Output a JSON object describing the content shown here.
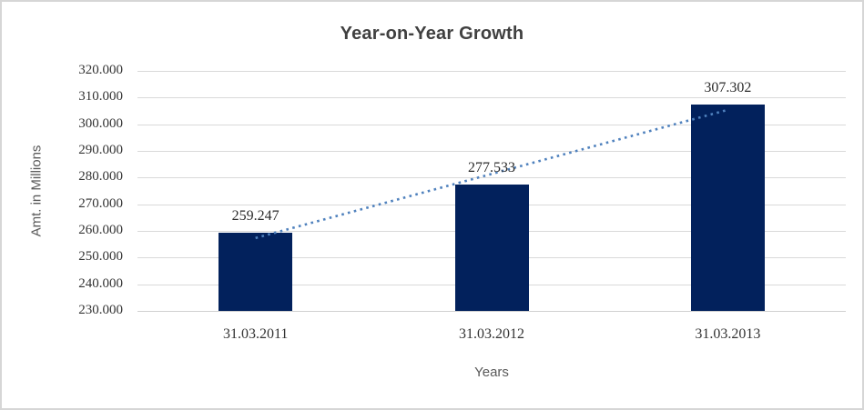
{
  "chart_data": {
    "type": "bar",
    "title": "Year-on-Year Growth",
    "xlabel": "Years",
    "ylabel": "Amt. in Millions",
    "categories": [
      "31.03.2011",
      "31.03.2012",
      "31.03.2013"
    ],
    "values": [
      259247,
      277533,
      307302
    ],
    "data_labels": [
      "259.247",
      "277.533",
      "307.302"
    ],
    "ylim": [
      230000,
      320000
    ],
    "y_tick_step": 10000,
    "y_tick_labels": [
      "230.000",
      "240.000",
      "250.000",
      "260.000",
      "270.000",
      "280.000",
      "290.000",
      "300.000",
      "310.000",
      "320.000"
    ],
    "grid": true,
    "legend": "none",
    "trendline": {
      "type": "linear",
      "style": "dotted"
    }
  },
  "colors": {
    "bar": "#02215c",
    "trendline": "#4f81bd",
    "gridline": "#d9d9d9",
    "title_text": "#404040",
    "axis_text": "#333333",
    "axis_title_text": "#595959",
    "chart_border": "#d6d6d6",
    "background": "#ffffff"
  }
}
